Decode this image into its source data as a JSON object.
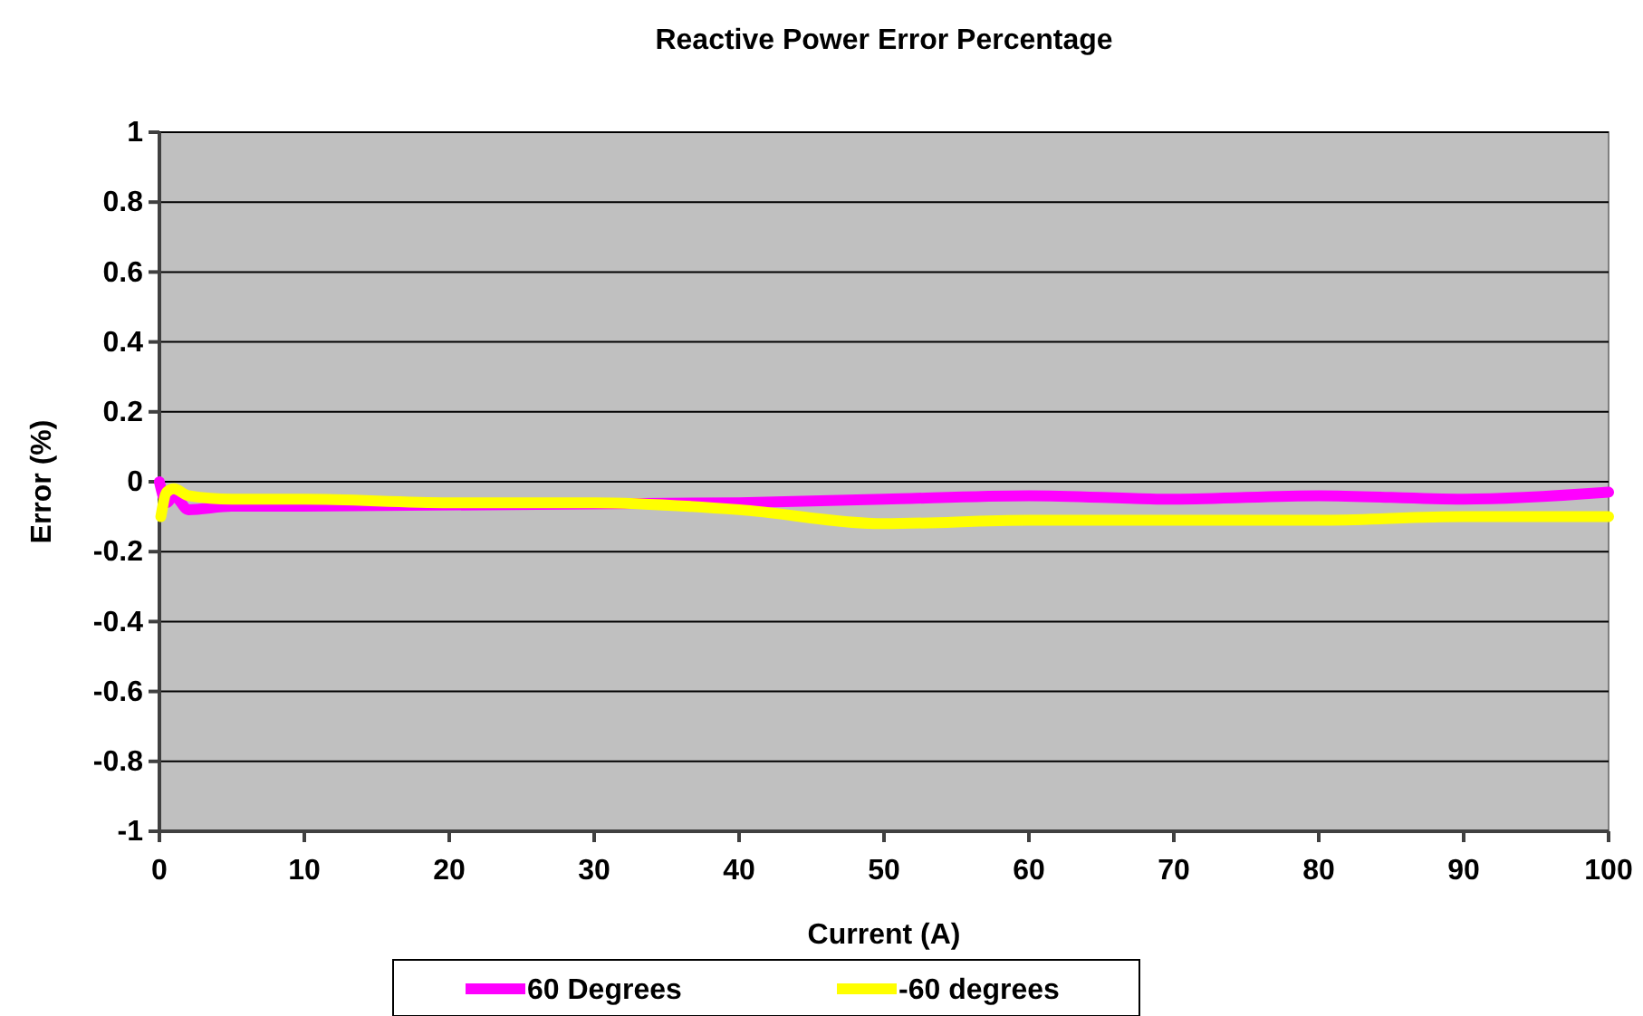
{
  "chart_data": {
    "type": "line",
    "title": "Reactive Power Error Percentage",
    "xlabel": "Current (A)",
    "ylabel": "Error (%)",
    "xlim": [
      0,
      100
    ],
    "xticks": [
      0,
      10,
      20,
      30,
      40,
      50,
      60,
      70,
      80,
      90,
      100
    ],
    "ylim": [
      -1,
      1
    ],
    "yticks": [
      -1,
      -0.8,
      -0.6,
      -0.4,
      -0.2,
      0,
      0.2,
      0.4,
      0.6,
      0.8,
      1
    ],
    "grid": "y",
    "legend": "bottom",
    "marker": "none",
    "line_style": "solid",
    "series": [
      {
        "name": "60 Degrees",
        "color": "#ff00ff",
        "x": [
          0,
          0.5,
          1,
          2,
          5,
          10,
          20,
          30,
          40,
          50,
          60,
          70,
          80,
          90,
          100
        ],
        "values": [
          0,
          -0.06,
          -0.04,
          -0.08,
          -0.07,
          -0.07,
          null,
          null,
          -0.06,
          -0.05,
          -0.04,
          -0.05,
          -0.04,
          -0.05,
          -0.03
        ]
      },
      {
        "name": "-60 degrees",
        "color": "#ffff00",
        "x": [
          0.1,
          0.5,
          1,
          2,
          5,
          10,
          20,
          30,
          40,
          50,
          60,
          70,
          80,
          90,
          100
        ],
        "values": [
          -0.1,
          -0.03,
          -0.02,
          -0.04,
          -0.05,
          -0.05,
          -0.06,
          -0.06,
          -0.08,
          -0.12,
          -0.11,
          -0.11,
          -0.11,
          -0.1,
          -0.1
        ]
      }
    ]
  }
}
